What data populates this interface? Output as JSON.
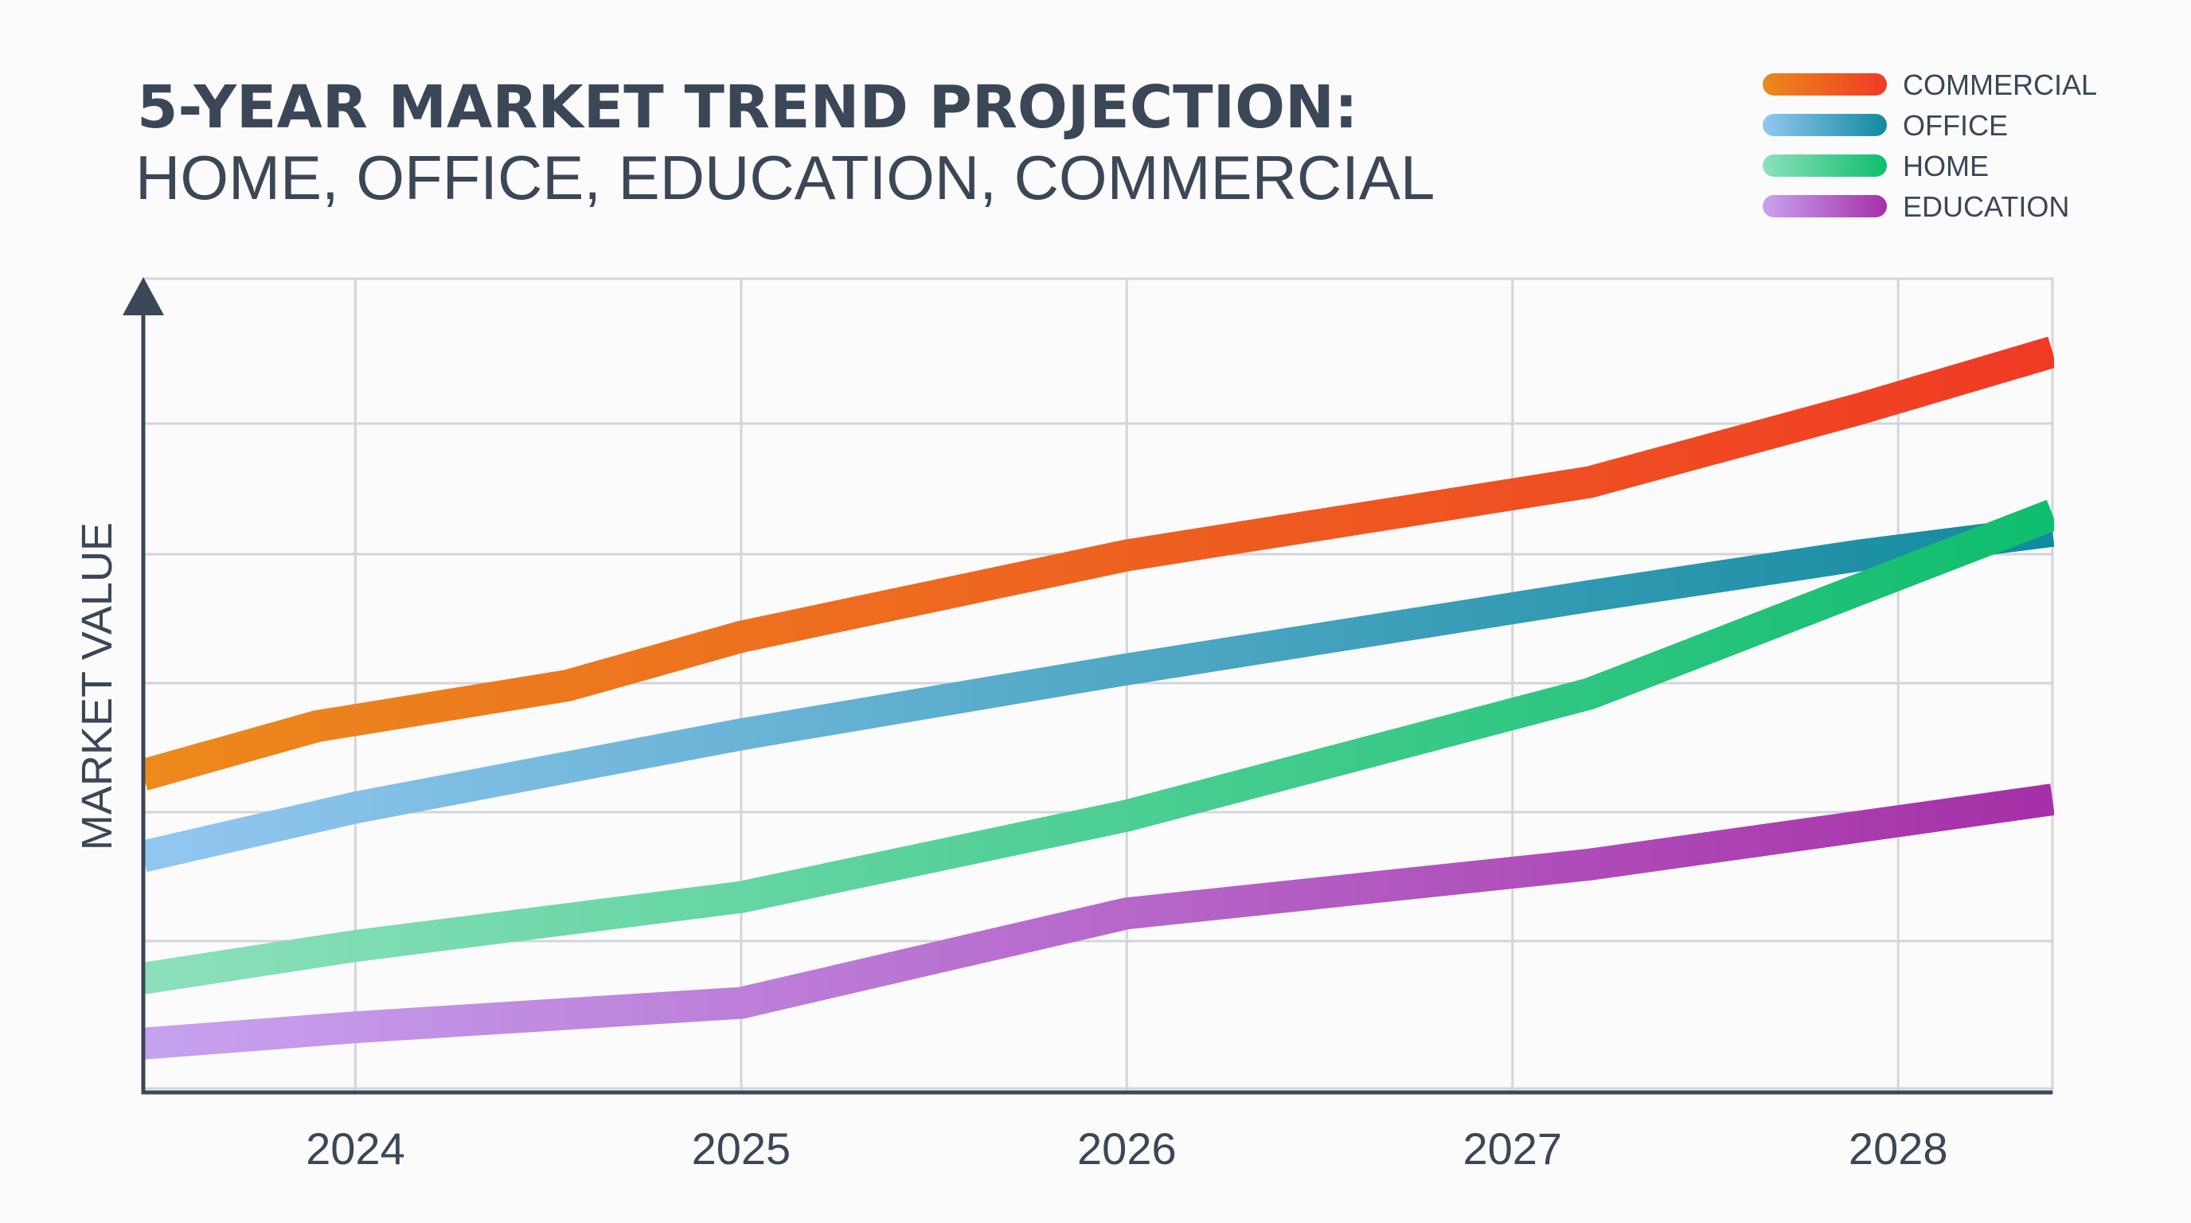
{
  "chart_data": {
    "type": "line",
    "title": "5-YEAR MARKET TREND PROJECTION:",
    "subtitle": "HOME, OFFICE, EDUCATION, COMMERCIAL",
    "xlabel": "",
    "ylabel": "MARKET VALUE",
    "x": [
      "2024",
      "2025",
      "2026",
      "2027",
      "2028"
    ],
    "xlim": [
      2023.45,
      2028.4
    ],
    "ylim": [
      0,
      100
    ],
    "grid": true,
    "legend": "top-right",
    "series": [
      {
        "name": "COMMERCIAL",
        "color_start": "#ec8a1c",
        "color_end": "#f03a24",
        "points": [
          [
            2023.45,
            39
          ],
          [
            2023.9,
            45
          ],
          [
            2024.55,
            50
          ],
          [
            2025.0,
            56
          ],
          [
            2026.0,
            66
          ],
          [
            2027.2,
            75
          ],
          [
            2027.9,
            84
          ],
          [
            2028.4,
            91
          ]
        ]
      },
      {
        "name": "OFFICE",
        "color_start": "#93c7f1",
        "color_end": "#118a9e",
        "points": [
          [
            2023.45,
            29
          ],
          [
            2024.0,
            35
          ],
          [
            2025.0,
            44
          ],
          [
            2026.0,
            52
          ],
          [
            2027.2,
            61
          ],
          [
            2027.9,
            66
          ],
          [
            2028.4,
            69
          ]
        ]
      },
      {
        "name": "HOME",
        "color_start": "#8ce0bc",
        "color_end": "#0fbd6d",
        "points": [
          [
            2023.45,
            14
          ],
          [
            2024.0,
            18
          ],
          [
            2025.0,
            24
          ],
          [
            2026.0,
            34
          ],
          [
            2027.2,
            49
          ],
          [
            2028.4,
            71
          ]
        ]
      },
      {
        "name": "EDUCATION",
        "color_start": "#c7a3ef",
        "color_end": "#a62fa7",
        "points": [
          [
            2023.45,
            6
          ],
          [
            2024.0,
            8
          ],
          [
            2025.0,
            11
          ],
          [
            2026.0,
            22
          ],
          [
            2027.2,
            28
          ],
          [
            2028.4,
            36
          ]
        ]
      }
    ]
  }
}
